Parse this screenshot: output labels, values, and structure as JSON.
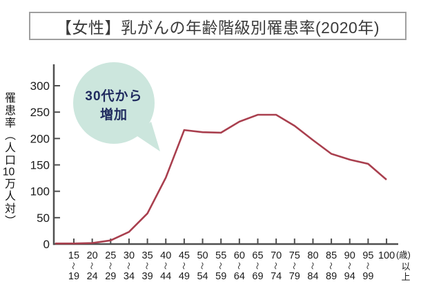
{
  "title": {
    "text": "【女性】乳がんの年齢階級別罹患率(2020年)"
  },
  "y_axis": {
    "label_pre": "罹患率（人口",
    "label_tcy": "10",
    "label_post": "万人対）"
  },
  "annotation": {
    "line1": "30代から",
    "line2": "増加",
    "text": "30代から増加",
    "bubble_color": "#cce6dd",
    "text_color": "#1f2a5e"
  },
  "chart_data": {
    "type": "line",
    "title": "【女性】乳がんの年齢階級別罹患率(2020年)",
    "categories": [
      "15〜19",
      "20〜24",
      "25〜29",
      "30〜34",
      "35〜39",
      "40〜44",
      "45〜49",
      "50〜54",
      "55〜59",
      "60〜64",
      "65〜69",
      "70〜74",
      "75〜79",
      "80〜84",
      "85〜89",
      "90〜94",
      "95〜99",
      "100以上"
    ],
    "values": [
      1,
      2,
      7,
      23,
      58,
      126,
      216,
      212,
      211,
      232,
      245,
      245,
      224,
      197,
      171,
      160,
      152,
      122
    ],
    "ylabel": "罹患率（人口10万人対）",
    "x_unit": "(歳)",
    "yticks": [
      0,
      50,
      100,
      150,
      200,
      250,
      300
    ],
    "ylim": [
      0,
      320
    ],
    "grid": false,
    "legend": false,
    "line_color": "#a93f4e",
    "annotation": "30代から増加"
  },
  "colors": {
    "line": "#a93f4e",
    "axis": "#4f4f4f",
    "bubble": "#cce6dd",
    "bubble_text": "#1f2a5e",
    "title_border": "#9f9f9f",
    "tick_text": "#1a1a1a"
  }
}
